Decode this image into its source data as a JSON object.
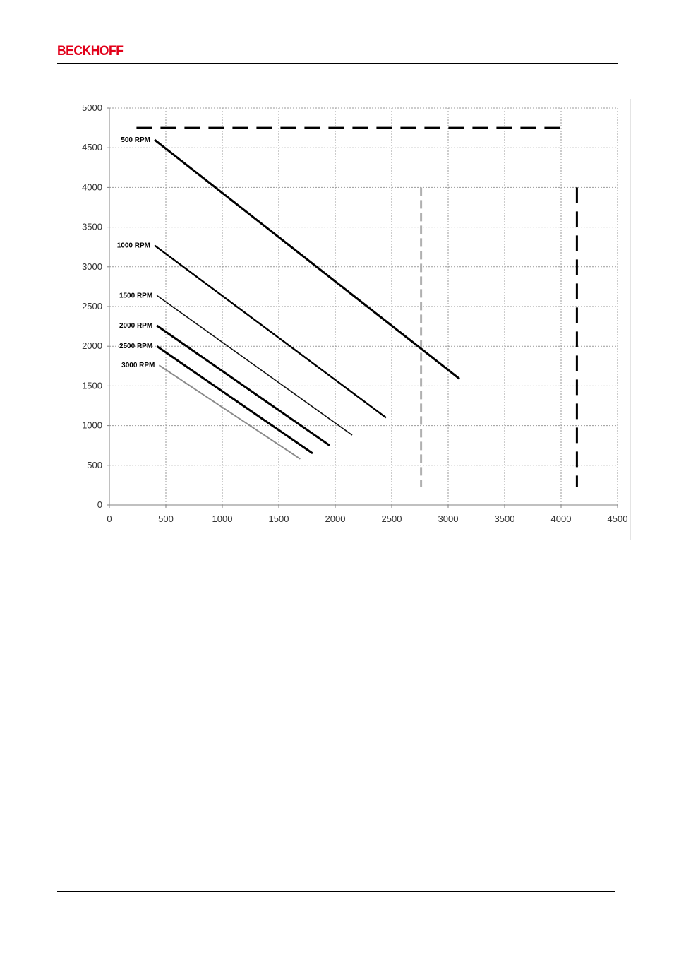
{
  "header": {
    "logo_text": "BECKHOFF",
    "brand_color": "#e2001a"
  },
  "chart_data": {
    "type": "line",
    "title": "",
    "xlabel": "",
    "ylabel": "",
    "xlim": [
      0,
      4500
    ],
    "ylim": [
      0,
      5000
    ],
    "x_ticks": [
      0,
      500,
      1000,
      1500,
      2000,
      2500,
      3000,
      3500,
      4000,
      4500
    ],
    "y_ticks": [
      0,
      500,
      1000,
      1500,
      2000,
      2500,
      3000,
      3500,
      4000,
      4500,
      5000
    ],
    "grid": true,
    "series": [
      {
        "name": "500 RPM",
        "x": [
          400,
          3100
        ],
        "y": [
          4600,
          1590
        ],
        "style": "thick"
      },
      {
        "name": "1000 RPM",
        "x": [
          400,
          2450
        ],
        "y": [
          3270,
          1100
        ],
        "style": "medium"
      },
      {
        "name": "1500 RPM",
        "x": [
          420,
          2150
        ],
        "y": [
          2640,
          880
        ],
        "style": "thin"
      },
      {
        "name": "2000 RPM",
        "x": [
          420,
          1950
        ],
        "y": [
          2260,
          750
        ],
        "style": "thick"
      },
      {
        "name": "2500 RPM",
        "x": [
          420,
          1800
        ],
        "y": [
          2000,
          650
        ],
        "style": "thick"
      },
      {
        "name": "3000 RPM",
        "x": [
          440,
          1690
        ],
        "y": [
          1760,
          580
        ],
        "style": "faint"
      }
    ],
    "limit_lines": [
      {
        "x": [
          240,
          4000
        ],
        "y": [
          4750,
          4750
        ],
        "style": "dashed-heavy"
      },
      {
        "x": [
          4140,
          4140
        ],
        "y": [
          4000,
          230
        ],
        "style": "dashed-heavy"
      },
      {
        "x": [
          2760,
          2760
        ],
        "y": [
          4000,
          230
        ],
        "style": "dashed-faint"
      }
    ]
  }
}
